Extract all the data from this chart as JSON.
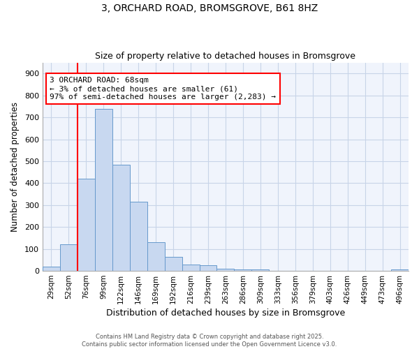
{
  "title1": "3, ORCHARD ROAD, BROMSGROVE, B61 8HZ",
  "title2": "Size of property relative to detached houses in Bromsgrove",
  "xlabel": "Distribution of detached houses by size in Bromsgrove",
  "ylabel": "Number of detached properties",
  "bar_labels": [
    "29sqm",
    "52sqm",
    "76sqm",
    "99sqm",
    "122sqm",
    "146sqm",
    "169sqm",
    "192sqm",
    "216sqm",
    "239sqm",
    "263sqm",
    "286sqm",
    "309sqm",
    "333sqm",
    "356sqm",
    "379sqm",
    "403sqm",
    "426sqm",
    "449sqm",
    "473sqm",
    "496sqm"
  ],
  "bar_values": [
    20,
    120,
    420,
    740,
    485,
    315,
    130,
    65,
    30,
    25,
    10,
    8,
    8,
    0,
    0,
    0,
    0,
    0,
    0,
    0,
    8
  ],
  "bar_color": "#c8d8f0",
  "bar_edge_color": "#6699cc",
  "ylim": [
    0,
    950
  ],
  "yticks": [
    0,
    100,
    200,
    300,
    400,
    500,
    600,
    700,
    800,
    900
  ],
  "annotation_text_line1": "3 ORCHARD ROAD: 68sqm",
  "annotation_text_line2": "← 3% of detached houses are smaller (61)",
  "annotation_text_line3": "97% of semi-detached houses are larger (2,283) →",
  "red_line_bar_index": 2,
  "bg_color": "#f0f4fc",
  "grid_color": "#c8d4e8",
  "footer1": "Contains HM Land Registry data © Crown copyright and database right 2025.",
  "footer2": "Contains public sector information licensed under the Open Government Licence v3.0."
}
